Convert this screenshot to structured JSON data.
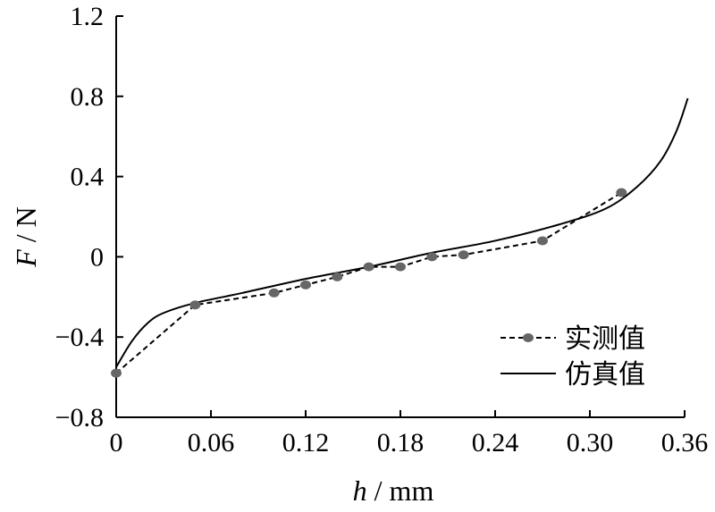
{
  "chart_data": {
    "type": "line",
    "title": "",
    "xlabel": {
      "symbol": "h",
      "unit": "/ mm"
    },
    "ylabel": {
      "symbol": "F",
      "unit": "/ N"
    },
    "xlim": [
      0,
      0.36
    ],
    "ylim": [
      -0.8,
      1.2
    ],
    "xticks": [
      "0",
      "0.06",
      "0.12",
      "0.18",
      "0.24",
      "0.30",
      "0.36"
    ],
    "yticks": [
      "-0.8",
      "-0.4",
      "0",
      "0.4",
      "0.8",
      "1.2"
    ],
    "grid": false,
    "legend_position": "lower-right",
    "series": [
      {
        "name": "实测值",
        "style": "dashed-with-markers",
        "color": "#000000",
        "marker_color": "#666666",
        "x": [
          0,
          0.05,
          0.1,
          0.12,
          0.14,
          0.16,
          0.18,
          0.2,
          0.22,
          0.27,
          0.32
        ],
        "y": [
          -0.58,
          -0.24,
          -0.18,
          -0.14,
          -0.1,
          -0.05,
          -0.05,
          0.0,
          0.01,
          0.08,
          0.32
        ]
      },
      {
        "name": "仿真值",
        "style": "solid",
        "color": "#000000",
        "x": [
          0,
          0.01,
          0.02,
          0.03,
          0.05,
          0.08,
          0.12,
          0.16,
          0.2,
          0.24,
          0.28,
          0.31,
          0.33,
          0.345,
          0.355,
          0.362
        ],
        "y": [
          -0.55,
          -0.42,
          -0.33,
          -0.28,
          -0.23,
          -0.18,
          -0.11,
          -0.05,
          0.02,
          0.08,
          0.16,
          0.24,
          0.35,
          0.48,
          0.63,
          0.79
        ]
      }
    ]
  }
}
